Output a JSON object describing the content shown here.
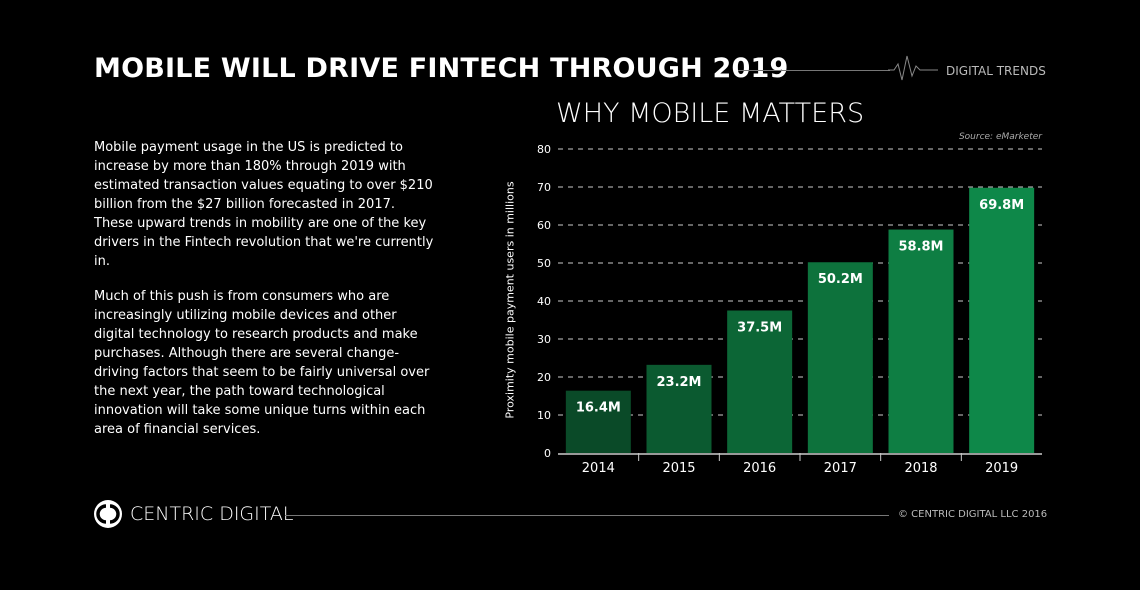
{
  "header": {
    "title": "MOBILE WILL DRIVE FINTECH THROUGH 2019",
    "tag": "DIGITAL TRENDS"
  },
  "body": {
    "p1": "Mobile payment usage in the US is predicted to increase by more than 180% through 2019 with estimated transaction values equating to over $210 billion from the $27 billion forecasted in 2017. These upward trends in mobility are one of the key drivers in the Fintech revolution that we're currently in.",
    "p2": "Much of this push is from consumers who are increasingly utilizing mobile devices and other digital technology to research products and make purchases. Although there are several change-driving factors that seem to be fairly universal over the next year, the path toward technological innovation will take some unique turns within each area of financial services."
  },
  "chart_data": {
    "type": "bar",
    "title": "WHY MOBILE MATTERS",
    "source": "Source: eMarketer",
    "xlabel": "",
    "ylabel": "Proximity mobile payment users in millions",
    "categories": [
      "2014",
      "2015",
      "2016",
      "2017",
      "2018",
      "2019"
    ],
    "values": [
      16.4,
      23.2,
      37.5,
      50.2,
      58.8,
      69.8
    ],
    "data_labels": [
      "16.4M",
      "23.2M",
      "37.5M",
      "50.2M",
      "58.8M",
      "69.8M"
    ],
    "colors": [
      "#0a4a28",
      "#0b5a30",
      "#0c6636",
      "#0d723c",
      "#0e7e43",
      "#0e8849"
    ],
    "ylim": [
      0,
      80
    ],
    "yticks": [
      "0",
      "10",
      "20",
      "30",
      "40",
      "50",
      "60",
      "70",
      "80"
    ],
    "grid": true
  },
  "footer": {
    "brand": "CENTRIC DIGITAL",
    "copyright": "© CENTRIC DIGITAL LLC 2016"
  }
}
